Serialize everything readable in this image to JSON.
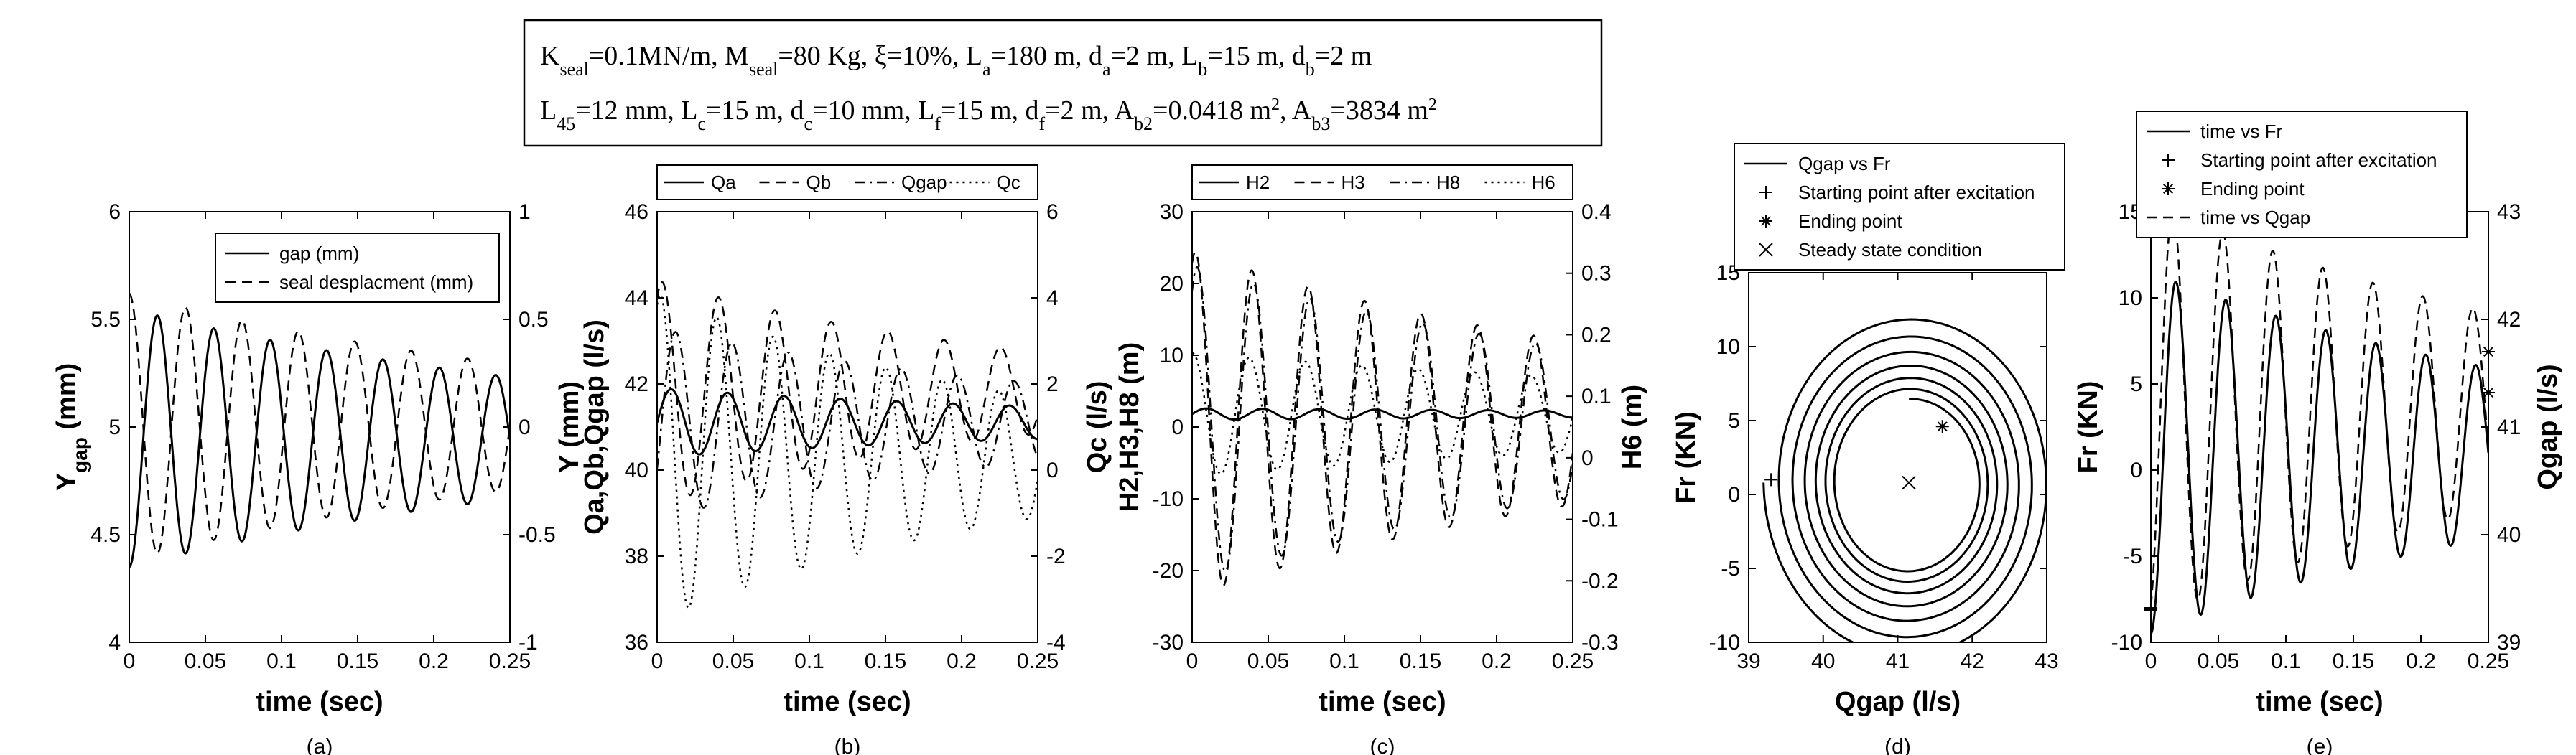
{
  "parameters_box": {
    "line1": [
      {
        "t": "K"
      },
      {
        "t": "seal",
        "sub": true
      },
      {
        "t": "=0.1MN/m, M"
      },
      {
        "t": "seal",
        "sub": true
      },
      {
        "t": "=80 Kg, ξ=10%, L"
      },
      {
        "t": "a",
        "sub": true
      },
      {
        "t": "=180 m, d"
      },
      {
        "t": "a",
        "sub": true
      },
      {
        "t": "=2 m, L"
      },
      {
        "t": "b",
        "sub": true
      },
      {
        "t": "=15 m, d"
      },
      {
        "t": "b",
        "sub": true
      },
      {
        "t": "=2 m"
      }
    ],
    "line2": [
      {
        "t": "L"
      },
      {
        "t": "45",
        "sub": true
      },
      {
        "t": "=12 mm, L"
      },
      {
        "t": "c",
        "sub": true
      },
      {
        "t": "=15 m, d"
      },
      {
        "t": "c",
        "sub": true
      },
      {
        "t": "=10 mm, L"
      },
      {
        "t": "f",
        "sub": true
      },
      {
        "t": "=15 m, d"
      },
      {
        "t": "f",
        "sub": true
      },
      {
        "t": "=2 m, A"
      },
      {
        "t": "b2",
        "sub": true
      },
      {
        "t": "=0.0418 m"
      },
      {
        "t": "2",
        "sup": true
      },
      {
        "t": ", A"
      },
      {
        "t": "b3",
        "sub": true
      },
      {
        "t": "=3834 m"
      },
      {
        "t": "2",
        "sup": true
      }
    ]
  },
  "chart_data": [
    {
      "type": "line",
      "label": "(a)",
      "xlabel": "time (sec)",
      "ylabel": "Y",
      "ylabel_sub": "gap",
      "ylabel_tail": " (mm)",
      "ylabel_right": "Y (mm)",
      "xlim": [
        0,
        0.25
      ],
      "ylim": [
        4,
        6
      ],
      "ylim_right": [
        -1,
        1
      ],
      "xticks": [
        "0",
        "0.05",
        "0.1",
        "0.15",
        "0.2",
        "0.25"
      ],
      "yticks": [
        "4",
        "4.5",
        "5",
        "5.5",
        "6"
      ],
      "yticks_right": [
        "-1",
        "-0.5",
        "0",
        "0.5",
        "1"
      ],
      "series": [
        {
          "name": "gap (mm)",
          "style": "solid",
          "axis": "left",
          "offset": 4.95,
          "amp": 0.6,
          "decay": 3.0,
          "freq": 27.0,
          "phase": -1.571,
          "trend": 0
        },
        {
          "name": "seal desplacment (mm)",
          "style": "dash",
          "axis": "right",
          "offset": 0.0,
          "amp": 0.62,
          "decay": 3.0,
          "freq": 27.0,
          "phase": 1.571,
          "trend": 0
        }
      ]
    },
    {
      "type": "line",
      "label": "(b)",
      "xlabel": "time (sec)",
      "ylabel": "Qa,Qb,Qgap (l/s)",
      "ylabel_right": "Qc (l/s)",
      "xlim": [
        0,
        0.25
      ],
      "ylim": [
        36,
        46
      ],
      "ylim_right": [
        -4,
        6
      ],
      "xticks": [
        "0",
        "0.05",
        "0.1",
        "0.15",
        "0.2",
        "0.25"
      ],
      "yticks": [
        "36",
        "38",
        "40",
        "42",
        "44",
        "46"
      ],
      "yticks_right": [
        "-4",
        "-2",
        "0",
        "2",
        "4",
        "6"
      ],
      "series": [
        {
          "name": "Qa",
          "style": "solid",
          "axis": "left",
          "offset": 41.1,
          "amp": 0.8,
          "decay": 3.0,
          "freq": 27.0,
          "phase": 0,
          "trend": 0
        },
        {
          "name": "Qb",
          "style": "dash",
          "axis": "left",
          "offset": 41.8,
          "amp": 2.6,
          "decay": 4.0,
          "freq": 27.0,
          "phase": 1.0,
          "trend": 0
        },
        {
          "name": "Qgap",
          "style": "dashdot",
          "axis": "left",
          "offset": 41.1,
          "amp": 2.2,
          "decay": 3.5,
          "freq": 27.0,
          "phase": -0.5,
          "trend": 0
        },
        {
          "name": "Qc",
          "style": "dot",
          "axis": "right",
          "offset": 0.3,
          "amp": 3.8,
          "decay": 4.0,
          "freq": 27.0,
          "phase": 1.2,
          "trend": 0
        }
      ]
    },
    {
      "type": "line",
      "label": "(c)",
      "xlabel": "time (sec)",
      "ylabel": "H2,H3,H8 (m)",
      "ylabel_right": "H6 (m)",
      "xlim": [
        0,
        0.25
      ],
      "ylim": [
        -30,
        30
      ],
      "ylim_right": [
        -0.3,
        0.4
      ],
      "xticks": [
        "0",
        "0.05",
        "0.1",
        "0.15",
        "0.2",
        "0.25"
      ],
      "yticks": [
        "-30",
        "-20",
        "-10",
        "0",
        "10",
        "20",
        "30"
      ],
      "yticks_right": [
        "-0.3",
        "-0.2",
        "-0.1",
        "0",
        "0.1",
        "0.2",
        "0.3",
        "0.4"
      ],
      "series": [
        {
          "name": "H2",
          "style": "solid",
          "axis": "left",
          "offset": 1.8,
          "amp": 0.8,
          "decay": 2.0,
          "freq": 27.0,
          "phase": 0,
          "trend": 0
        },
        {
          "name": "H3",
          "style": "dash",
          "axis": "left",
          "offset": 0.5,
          "amp": 24.0,
          "decay": 3.0,
          "freq": 27.0,
          "phase": 1.2,
          "trend": 0
        },
        {
          "name": "H8",
          "style": "dashdot",
          "axis": "left",
          "offset": 0.5,
          "amp": 22.0,
          "decay": 3.0,
          "freq": 27.0,
          "phase": 1.0,
          "trend": 0
        },
        {
          "name": "H6",
          "style": "dot",
          "axis": "right",
          "offset": 0.07,
          "amp": 0.1,
          "decay": 2.0,
          "freq": 27.0,
          "phase": 1.5,
          "trend": 0
        }
      ]
    },
    {
      "type": "scatter",
      "label": "(d)",
      "xlabel": "Qgap (l/s)",
      "ylabel": "Fr (KN)",
      "xlim": [
        39,
        43
      ],
      "ylim": [
        -10,
        15
      ],
      "xticks": [
        "39",
        "40",
        "41",
        "42",
        "43"
      ],
      "yticks": [
        "-10",
        "-5",
        "0",
        "5",
        "10",
        "15"
      ],
      "spiral": {
        "cx": 41.15,
        "cy": 0.8,
        "rx": 1.95,
        "ry": 12.0,
        "decay": 3.0,
        "freq": 27.0,
        "tmax": 0.25
      },
      "series": [
        {
          "name": "Qgap vs Fr",
          "style": "solid"
        },
        {
          "name": "Starting point after excitation",
          "marker": "+",
          "x": 39.3,
          "y": 1.0
        },
        {
          "name": "Ending point",
          "marker": "*",
          "x": 41.6,
          "y": 4.6
        },
        {
          "name": "Steady state condition",
          "marker": "x",
          "x": 41.15,
          "y": 0.8
        }
      ]
    },
    {
      "type": "line",
      "label": "(e)",
      "xlabel": "time (sec)",
      "ylabel": "Fr (KN)",
      "ylabel_right": "Qgap (l/s)",
      "xlim": [
        0,
        0.25
      ],
      "ylim": [
        -10,
        15
      ],
      "ylim_right": [
        39,
        43
      ],
      "xticks": [
        "0",
        "0.05",
        "0.1",
        "0.15",
        "0.2",
        "0.25"
      ],
      "yticks": [
        "-10",
        "-5",
        "0",
        "5",
        "10",
        "15"
      ],
      "yticks_right": [
        "39",
        "40",
        "41",
        "42",
        "43"
      ],
      "series": [
        {
          "name": "time vs Fr",
          "style": "solid",
          "axis": "left",
          "offset": 1.0,
          "amp": 10.5,
          "decay": 3.0,
          "freq": 27.0,
          "phase": -1.571,
          "trend": 0
        },
        {
          "name": "Starting point after excitation",
          "marker": "+",
          "axis": "left",
          "x": 0.0,
          "y": -8.0
        },
        {
          "name": "Ending point",
          "marker": "*",
          "axis": "left",
          "x": 0.25,
          "y": 4.5
        },
        {
          "name": "time vs Qgap",
          "style": "dash",
          "axis": "right",
          "offset": 41.15,
          "amp": 1.95,
          "decay": 3.0,
          "freq": 27.0,
          "phase": -1.2,
          "trend": 0
        }
      ],
      "extra_markers": [
        {
          "marker": "+",
          "axis": "right",
          "x": 0.0,
          "y": 39.3
        },
        {
          "marker": "*",
          "axis": "right",
          "x": 0.25,
          "y": 41.7
        }
      ]
    }
  ]
}
